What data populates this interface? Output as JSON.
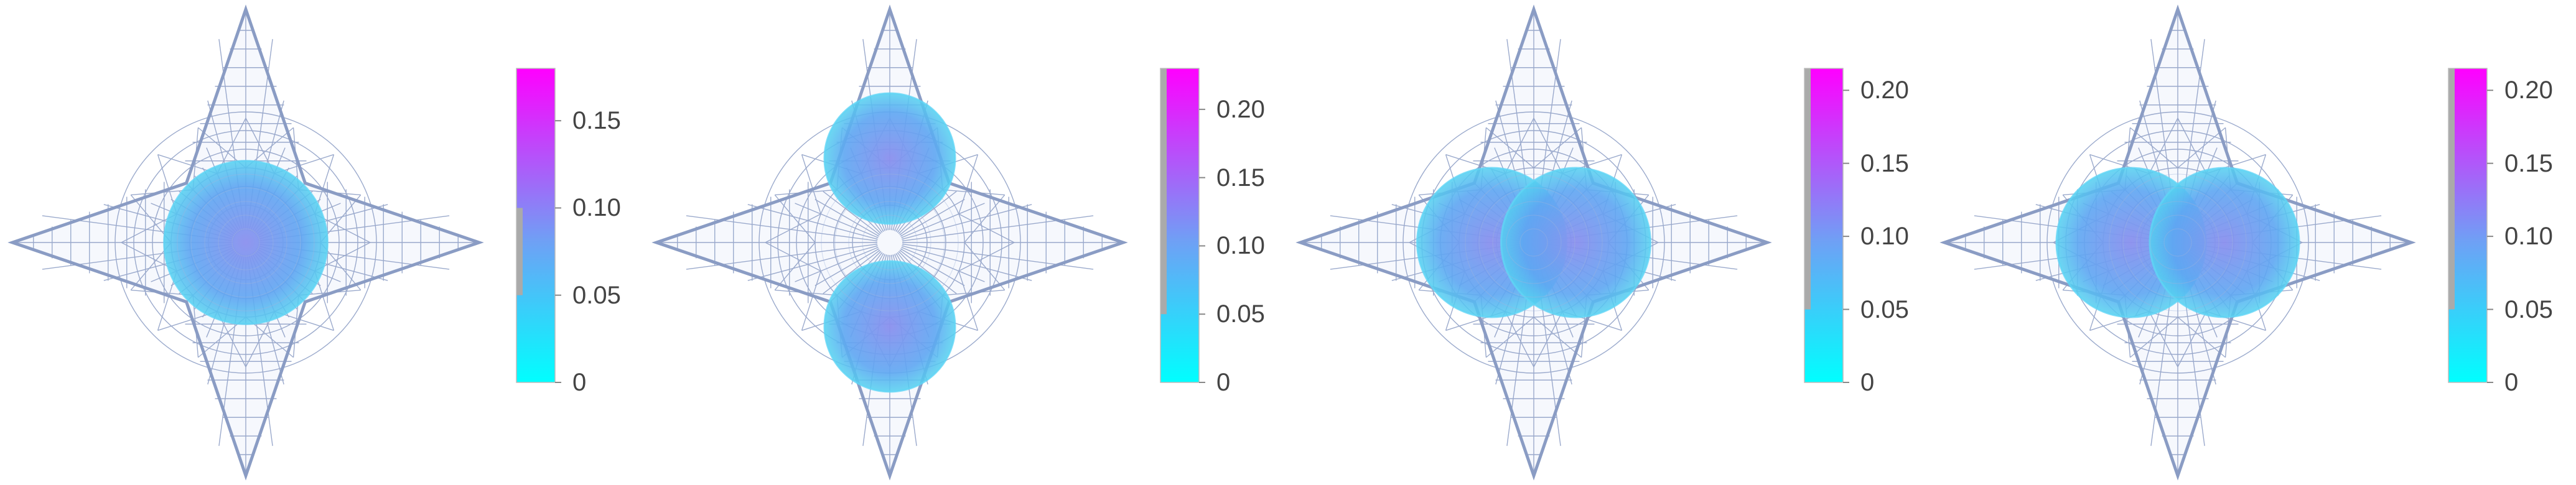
{
  "chart_data": [
    {
      "type": "heatmap",
      "description": "Wireframe star-shaped domain with a single centered density blob",
      "blobs": [
        {
          "cx": 0,
          "cy": 0,
          "r": 0.35,
          "value": 0.09
        }
      ],
      "colorbar": {
        "range": [
          0,
          0.18
        ],
        "ticks": [
          0,
          0.05,
          0.1,
          0.15
        ],
        "tick_labels": [
          "0",
          "0.05",
          "0.10",
          "0.15"
        ],
        "gray_band": [
          0.05,
          0.1
        ]
      }
    },
    {
      "type": "heatmap",
      "description": "Wireframe star-shaped domain with two vertically separated lobes",
      "blobs": [
        {
          "cx": 0,
          "cy": -0.36,
          "r": 0.28,
          "value": 0.12
        },
        {
          "cx": 0,
          "cy": 0.36,
          "r": 0.28,
          "value": 0.12
        }
      ],
      "colorbar": {
        "range": [
          0,
          0.23
        ],
        "ticks": [
          0,
          0.05,
          0.1,
          0.15,
          0.2
        ],
        "tick_labels": [
          "0",
          "0.05",
          "0.10",
          "0.15",
          "0.20"
        ],
        "gray_band": [
          0.05,
          0.23
        ]
      }
    },
    {
      "type": "heatmap",
      "description": "Wireframe star-shaped domain with two horizontally overlapping lobes",
      "blobs": [
        {
          "cx": -0.18,
          "cy": 0,
          "r": 0.32,
          "value": 0.11
        },
        {
          "cx": 0.18,
          "cy": 0,
          "r": 0.32,
          "value": 0.11
        }
      ],
      "colorbar": {
        "range": [
          0,
          0.215
        ],
        "ticks": [
          0,
          0.05,
          0.1,
          0.15,
          0.2
        ],
        "tick_labels": [
          "0",
          "0.05",
          "0.10",
          "0.15",
          "0.20"
        ],
        "gray_band": [
          0.05,
          0.215
        ]
      }
    },
    {
      "type": "heatmap",
      "description": "Wireframe star-shaped domain with two horizontally adjacent lobes",
      "blobs": [
        {
          "cx": -0.2,
          "cy": 0,
          "r": 0.32,
          "value": 0.11
        },
        {
          "cx": 0.2,
          "cy": 0,
          "r": 0.32,
          "value": 0.11
        }
      ],
      "colorbar": {
        "range": [
          0,
          0.215
        ],
        "ticks": [
          0,
          0.05,
          0.1,
          0.15,
          0.2
        ],
        "tick_labels": [
          "0",
          "0.05",
          "0.10",
          "0.15",
          "0.20"
        ],
        "gray_band": [
          0.05,
          0.215
        ]
      }
    }
  ],
  "colors": {
    "mesh": "#8a9cc4",
    "low": "#00ffff",
    "high": "#ff00ff",
    "blob": "#5ea6f2",
    "gray": "#aaaaaa"
  }
}
